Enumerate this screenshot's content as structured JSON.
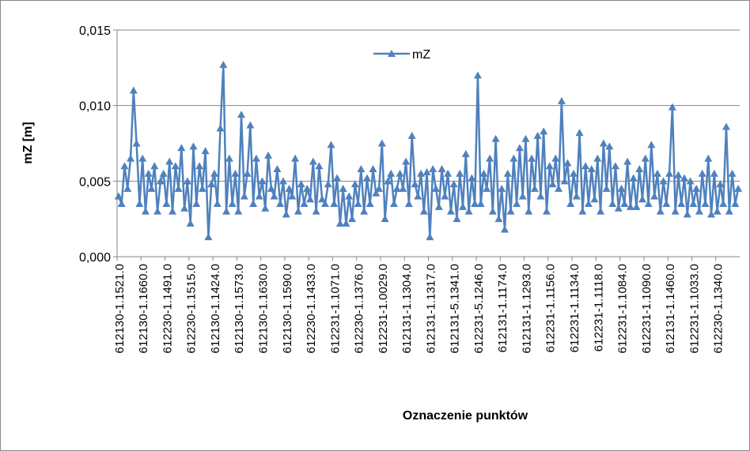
{
  "chart_data": {
    "type": "line",
    "x_label": "Oznaczenie punktów",
    "y_label": "mZ [m]",
    "legend": "top-center",
    "grid": true,
    "ylim": [
      0,
      0.015
    ],
    "yticks": [
      {
        "value": 0,
        "label": "0,000"
      },
      {
        "value": 0.005,
        "label": "0,005"
      },
      {
        "value": 0.01,
        "label": "0,010"
      },
      {
        "value": 0.015,
        "label": "0,015"
      }
    ],
    "categories": [
      "612130-1.1521.0",
      null,
      null,
      null,
      null,
      null,
      null,
      null,
      "612130-1.1660.0",
      null,
      null,
      null,
      null,
      null,
      null,
      null,
      "612230-1.1491.0",
      null,
      null,
      null,
      null,
      null,
      null,
      null,
      "612230-1.1515.0",
      null,
      null,
      null,
      null,
      null,
      null,
      null,
      "612130-1.1424.0",
      null,
      null,
      null,
      null,
      null,
      null,
      null,
      "612130-1.1573.0",
      null,
      null,
      null,
      null,
      null,
      null,
      null,
      "612130-1.1630.0",
      null,
      null,
      null,
      null,
      null,
      null,
      null,
      "612130-1.1590.0",
      null,
      null,
      null,
      null,
      null,
      null,
      null,
      "612230-1.1433.0",
      null,
      null,
      null,
      null,
      null,
      null,
      null,
      "612231-1.1071.0",
      null,
      null,
      null,
      null,
      null,
      null,
      null,
      "612230-1.1376.0",
      null,
      null,
      null,
      null,
      null,
      null,
      null,
      "612231-1.0029.0",
      null,
      null,
      null,
      null,
      null,
      null,
      null,
      "612131-1.1304.0",
      null,
      null,
      null,
      null,
      null,
      null,
      null,
      "612131-1.1317.0",
      null,
      null,
      null,
      null,
      null,
      null,
      null,
      "612131-5.1341.0",
      null,
      null,
      null,
      null,
      null,
      null,
      null,
      "612231-5.1246.0",
      null,
      null,
      null,
      null,
      null,
      null,
      null,
      "612131-1.1174.0",
      null,
      null,
      null,
      null,
      null,
      null,
      null,
      "612131-1.1293.0",
      null,
      null,
      null,
      null,
      null,
      null,
      null,
      "612231-1.1156.0",
      null,
      null,
      null,
      null,
      null,
      null,
      null,
      "612231-1.1134.0",
      null,
      null,
      null,
      null,
      null,
      null,
      null,
      "612231-1.1118.0",
      null,
      null,
      null,
      null,
      null,
      null,
      null,
      "612231-1.1084.0",
      null,
      null,
      null,
      null,
      null,
      null,
      null,
      "612231-1.1090.0",
      null,
      null,
      null,
      null,
      null,
      null,
      null,
      "612131-1.1460.0",
      null,
      null,
      null,
      null,
      null,
      null,
      null,
      "612231-1.1033.0",
      null,
      null,
      null,
      null,
      null,
      null,
      null,
      "612230-1.1340.0",
      null,
      null,
      null,
      null,
      null,
      null,
      null
    ],
    "series": [
      {
        "name": "mZ",
        "color": "#4f81bd",
        "values": [
          0.004,
          0.0035,
          0.006,
          0.0045,
          0.0065,
          0.011,
          0.0075,
          0.0035,
          0.0065,
          0.003,
          0.0055,
          0.0045,
          0.006,
          0.003,
          0.005,
          0.0055,
          0.0035,
          0.0063,
          0.003,
          0.006,
          0.0045,
          0.0072,
          0.0032,
          0.005,
          0.0022,
          0.0073,
          0.0035,
          0.006,
          0.0045,
          0.007,
          0.0013,
          0.0048,
          0.0055,
          0.0035,
          0.0085,
          0.0127,
          0.003,
          0.0065,
          0.0035,
          0.0055,
          0.003,
          0.0094,
          0.004,
          0.0055,
          0.0087,
          0.0035,
          0.0065,
          0.004,
          0.005,
          0.0032,
          0.0067,
          0.0045,
          0.004,
          0.0058,
          0.0035,
          0.005,
          0.0028,
          0.0045,
          0.004,
          0.0065,
          0.003,
          0.0048,
          0.0035,
          0.0045,
          0.0038,
          0.0063,
          0.003,
          0.006,
          0.0038,
          0.0035,
          0.0048,
          0.0074,
          0.0035,
          0.0052,
          0.0022,
          0.0045,
          0.0022,
          0.004,
          0.0025,
          0.0048,
          0.0035,
          0.0058,
          0.003,
          0.0052,
          0.0035,
          0.0058,
          0.0042,
          0.0045,
          0.0075,
          0.0025,
          0.005,
          0.0055,
          0.0035,
          0.0045,
          0.0055,
          0.0045,
          0.0063,
          0.0035,
          0.008,
          0.0048,
          0.004,
          0.0055,
          0.003,
          0.0056,
          0.0013,
          0.0058,
          0.0045,
          0.0033,
          0.0058,
          0.004,
          0.0055,
          0.003,
          0.0048,
          0.0025,
          0.0055,
          0.0033,
          0.0068,
          0.003,
          0.0052,
          0.0035,
          0.012,
          0.0035,
          0.0055,
          0.0045,
          0.0065,
          0.003,
          0.0078,
          0.0025,
          0.0045,
          0.0018,
          0.0055,
          0.003,
          0.0065,
          0.0035,
          0.0072,
          0.004,
          0.0078,
          0.003,
          0.0065,
          0.0045,
          0.008,
          0.004,
          0.0083,
          0.003,
          0.006,
          0.0048,
          0.0065,
          0.0045,
          0.0103,
          0.005,
          0.0062,
          0.0035,
          0.0055,
          0.004,
          0.0082,
          0.003,
          0.006,
          0.0035,
          0.0058,
          0.0038,
          0.0065,
          0.003,
          0.0075,
          0.0045,
          0.0073,
          0.0035,
          0.006,
          0.0032,
          0.0045,
          0.0035,
          0.0063,
          0.0033,
          0.0052,
          0.0033,
          0.0058,
          0.0038,
          0.0065,
          0.0035,
          0.0074,
          0.004,
          0.0055,
          0.003,
          0.005,
          0.0035,
          0.0055,
          0.0099,
          0.003,
          0.0054,
          0.0035,
          0.0052,
          0.0028,
          0.005,
          0.0035,
          0.0045,
          0.003,
          0.0055,
          0.0035,
          0.0065,
          0.0028,
          0.0055,
          0.003,
          0.0048,
          0.0035,
          0.0086,
          0.003,
          0.0055,
          0.0035,
          0.0045
        ]
      }
    ]
  }
}
